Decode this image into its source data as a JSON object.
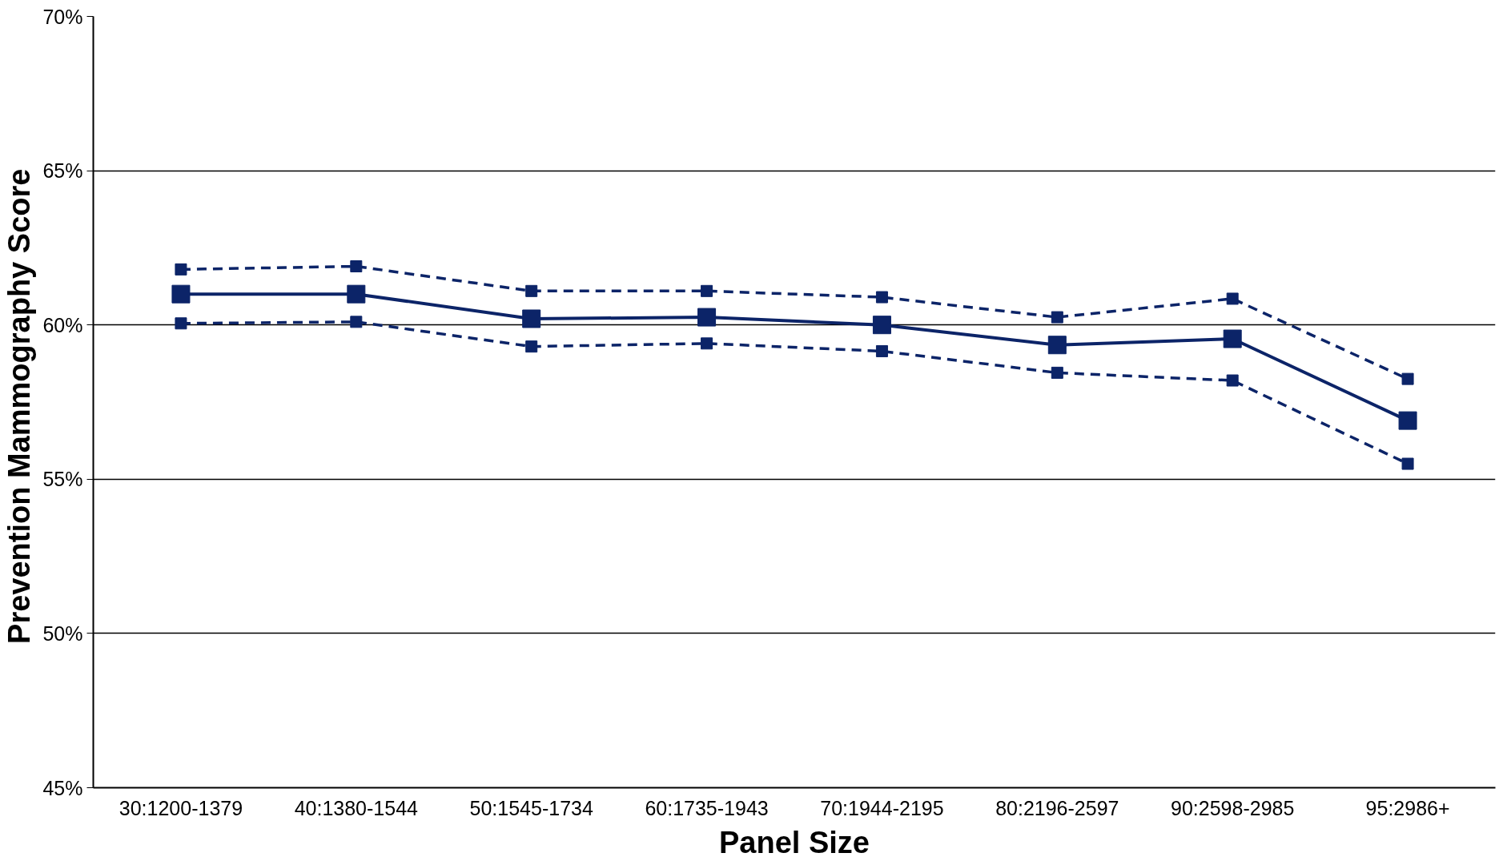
{
  "chart_data": {
    "type": "line",
    "xlabel": "Panel Size",
    "ylabel": "Prevention  Mammography Score",
    "categories": [
      "30:1200-1379",
      "40:1380-1544",
      "50:1545-1734",
      "60:1735-1943",
      "70:1944-2195",
      "80:2196-2597",
      "90:2598-2985",
      "95:2986+"
    ],
    "series": [
      {
        "color": "#0c2468",
        "line_style": "dashed",
        "marker": "square",
        "values": [
          61.8,
          61.9,
          61.1,
          61.1,
          60.9,
          60.25,
          60.85,
          58.25
        ]
      },
      {
        "color": "#0c2468",
        "line_style": "solid",
        "marker": "square",
        "values": [
          61.0,
          61.0,
          60.2,
          60.25,
          60.0,
          59.35,
          59.55,
          56.9
        ]
      },
      {
        "color": "#0c2468",
        "line_style": "dashed",
        "marker": "square",
        "values": [
          60.05,
          60.1,
          59.3,
          59.4,
          59.15,
          58.45,
          58.2,
          55.5
        ]
      }
    ],
    "ylim": [
      45,
      70
    ],
    "yticks": [
      {
        "value": 45,
        "label": "45%"
      },
      {
        "value": 50,
        "label": "50%"
      },
      {
        "value": 55,
        "label": "55%"
      },
      {
        "value": 60,
        "label": "60%"
      },
      {
        "value": 65,
        "label": "65%"
      },
      {
        "value": 70,
        "label": "70%"
      }
    ],
    "grid": "y"
  }
}
